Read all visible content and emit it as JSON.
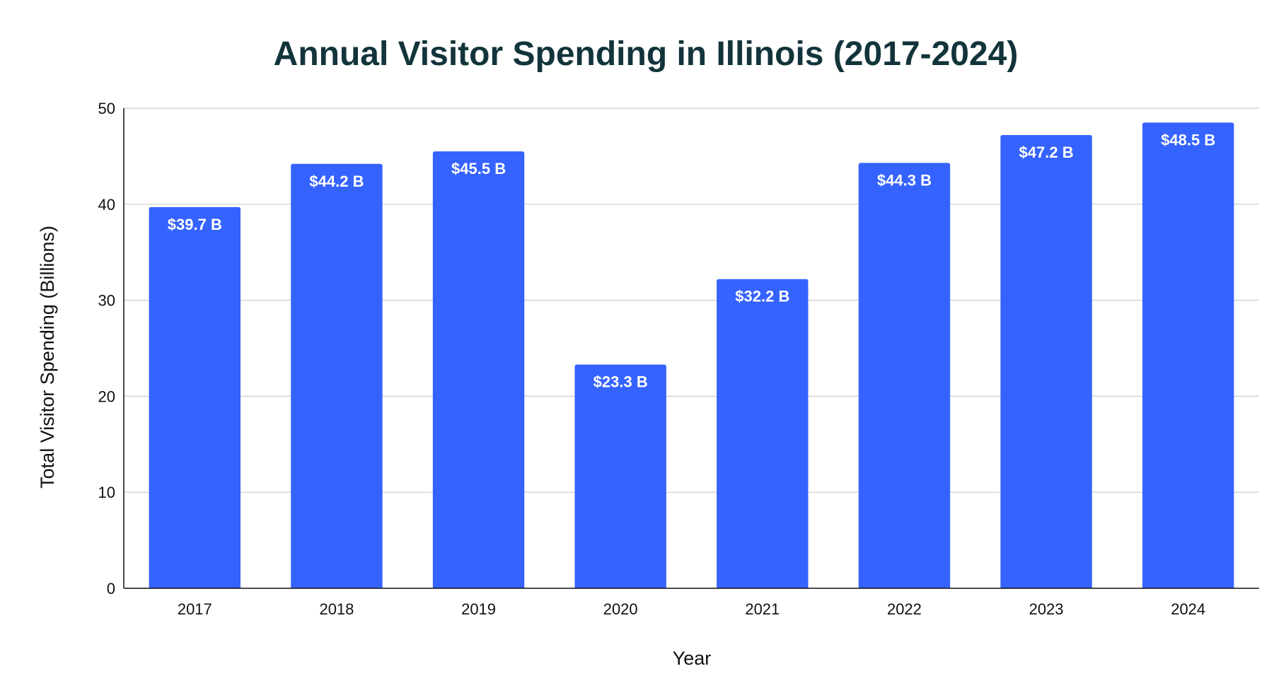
{
  "chart_data": {
    "type": "bar",
    "title": "Annual Visitor Spending in Illinois (2017-2024)",
    "xlabel": "Year",
    "ylabel": "Total Visitor Spending (Billions)",
    "categories": [
      "2017",
      "2018",
      "2019",
      "2020",
      "2021",
      "2022",
      "2023",
      "2024"
    ],
    "values": [
      39.7,
      44.2,
      45.5,
      23.3,
      32.2,
      44.3,
      47.2,
      48.5
    ],
    "data_labels": [
      "$39.7 B",
      "$44.2 B",
      "$45.5 B",
      "$23.3 B",
      "$32.2 B",
      "$44.3 B",
      "$47.2 B",
      "$48.5 B"
    ],
    "ylim": [
      0,
      50
    ],
    "yticks": [
      "0",
      "10",
      "20",
      "30",
      "40",
      "50"
    ],
    "grid": true,
    "legend": "none",
    "colors": {
      "bar": "#3563ff",
      "title": "#12343b",
      "grid": "#cccccc",
      "axis": "#111111"
    }
  }
}
